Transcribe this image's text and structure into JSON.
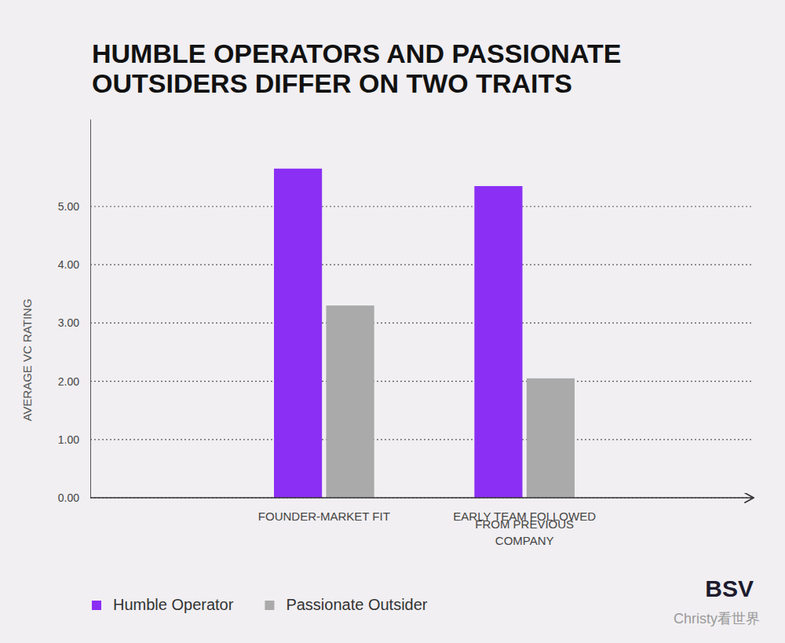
{
  "chart_data": {
    "type": "bar",
    "title": "HUMBLE OPERATORS AND PASSIONATE OUTSIDERS DIFFER ON TWO TRAITS",
    "y_label": "AVERAGE VC RATING",
    "categories": [
      "FOUNDER-MARKET FIT",
      "EARLY TEAM FOLLOWED FROM PREVIOUS COMPANY"
    ],
    "series": [
      {
        "name": "Humble Operator",
        "color": "#8b2ff4",
        "values": [
          5.65,
          5.35
        ]
      },
      {
        "name": "Passionate Outsider",
        "color": "#aaaaaa",
        "values": [
          3.3,
          2.05
        ]
      }
    ],
    "ylim": [
      0,
      6.5
    ],
    "yticks": [
      {
        "value": 0,
        "label": "0.00"
      },
      {
        "value": 1,
        "label": "1.00"
      },
      {
        "value": 2,
        "label": "2.00"
      },
      {
        "value": 3,
        "label": "3.00"
      },
      {
        "value": 4,
        "label": "4.00"
      },
      {
        "value": 5,
        "label": "5.00"
      }
    ],
    "grid": true,
    "legend": "bottom-left",
    "annotations": [
      "BSV",
      "Christy看世界"
    ]
  }
}
